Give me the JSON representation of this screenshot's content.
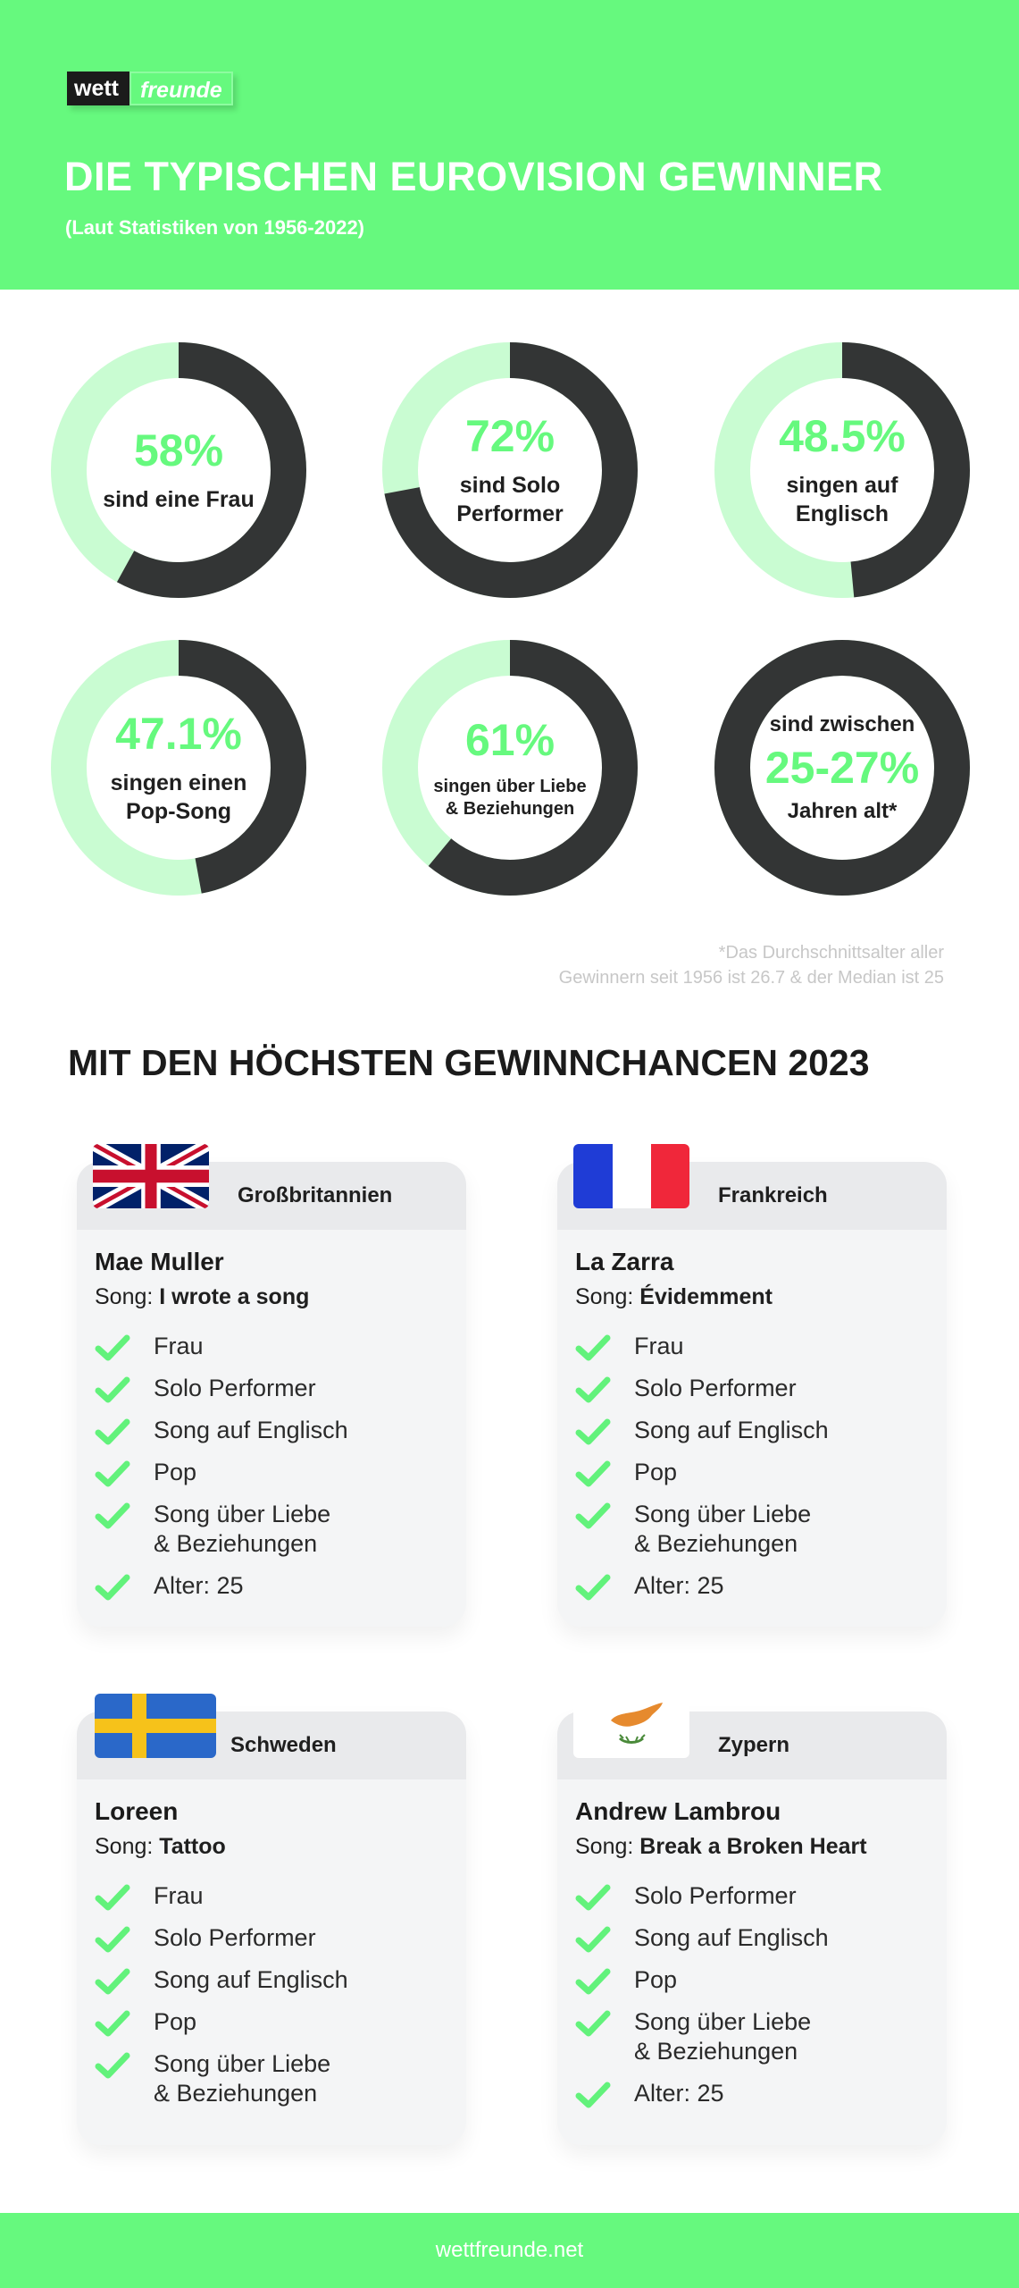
{
  "header": {
    "logo_part1": "wett",
    "logo_part2": "freunde",
    "title": "DIE TYPISCHEN EUROVISION GEWINNER",
    "subtitle": "(Laut Statistiken von 1956-2022)"
  },
  "stats": [
    {
      "value": "58%",
      "label": "sind eine Frau",
      "fraction": 0.58
    },
    {
      "value": "72%",
      "label": "sind Solo\nPerformer",
      "fraction": 0.72
    },
    {
      "value": "48.5%",
      "label": "singen auf\nEnglisch",
      "fraction": 0.485
    },
    {
      "value": "47.1%",
      "label": "singen einen\nPop-Song",
      "fraction": 0.471
    },
    {
      "value": "61%",
      "label": "singen über Liebe\n& Beziehungen",
      "fraction": 0.61
    },
    {
      "label_before": "sind zwischen",
      "value": "25-27%",
      "label_after": "Jahren alt*",
      "fraction": 1.0
    }
  ],
  "footnote": {
    "line1": "*Das Durchschnittsalter aller",
    "line2": "Gewinnern seit 1956 ist 26.7 & der Median ist 25"
  },
  "section_title": "MIT DEN HÖCHSTEN GEWINNCHANCEN 2023",
  "cards": [
    {
      "country": "Großbritannien",
      "flag": "uk-flag-icon",
      "artist": "Mae Muller",
      "song_prefix": "Song: ",
      "song": "I wrote a song",
      "features": [
        "Frau",
        "Solo Performer",
        "Song auf Englisch",
        "Pop",
        "Song über Liebe\n& Beziehungen",
        "Alter: 25"
      ]
    },
    {
      "country": "Frankreich",
      "flag": "france-flag-icon",
      "artist": "La Zarra",
      "song_prefix": "Song: ",
      "song": "Évidemment",
      "features": [
        "Frau",
        "Solo Performer",
        "Song auf Englisch",
        "Pop",
        "Song über Liebe\n& Beziehungen",
        "Alter: 25"
      ]
    },
    {
      "country": "Schweden",
      "flag": "sweden-flag-icon",
      "artist": "Loreen",
      "song_prefix": "Song: ",
      "song": "Tattoo",
      "features": [
        "Frau",
        "Solo Performer",
        "Song auf Englisch",
        "Pop",
        "Song über Liebe\n& Beziehungen"
      ]
    },
    {
      "country": "Zypern",
      "flag": "cyprus-flag-icon",
      "artist": "Andrew Lambrou",
      "song_prefix": "Song: ",
      "song": "Break a Broken Heart",
      "features": [
        "Solo Performer",
        "Song auf Englisch",
        "Pop",
        "Song über Liebe\n& Beziehungen",
        "Alter: 25"
      ]
    }
  ],
  "footer": {
    "text": "wettfreunde.net"
  },
  "colors": {
    "accent": "#66f97e",
    "ring_light": "#c9fcd2",
    "ring_dark": "#333535",
    "check": "#62f27b"
  }
}
